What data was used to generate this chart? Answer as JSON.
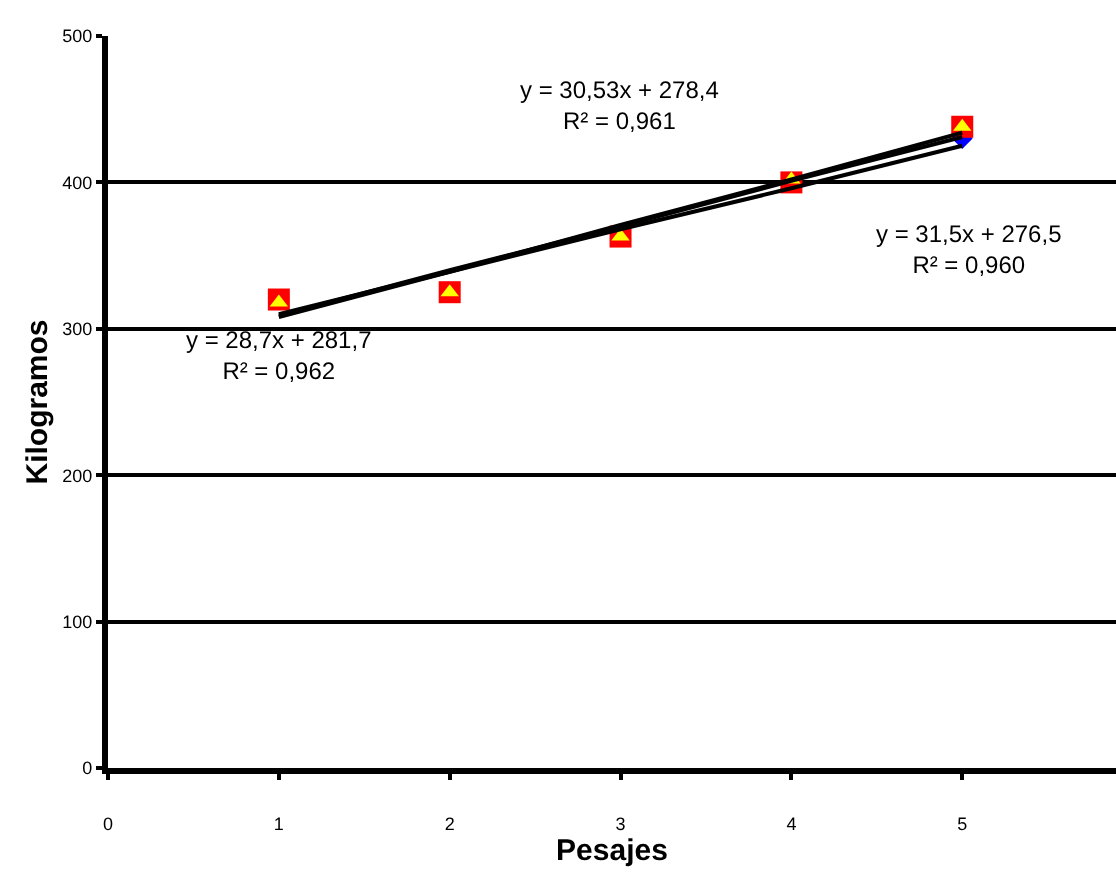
{
  "chart_data": {
    "type": "scatter",
    "xlabel": "Pesajes",
    "ylabel": "Kilogramos",
    "x": [
      1,
      2,
      3,
      4,
      5
    ],
    "series": [
      {
        "color": "#0000ff",
        "marker": "diamond",
        "values": [
          null,
          null,
          null,
          null,
          430
        ]
      },
      {
        "color": "#ff0000",
        "marker": "square",
        "values": [
          320,
          325,
          363,
          400,
          438
        ]
      },
      {
        "color": "#ffff00",
        "marker": "triangle",
        "values": [
          318,
          325,
          363,
          402,
          438
        ]
      },
      {
        "type": "line",
        "color": "#000000",
        "marker": "none",
        "values": [
          310,
          339,
          368,
          396,
          425
        ]
      },
      {
        "type": "line",
        "color": "#000000",
        "marker": "none",
        "values": [
          309,
          340,
          370,
          401,
          431
        ]
      },
      {
        "type": "line",
        "color": "#000000",
        "marker": "none",
        "values": [
          308,
          339,
          371,
          402,
          434
        ]
      }
    ],
    "annotations": [
      "y = 28,7x + 281,7\nR² = 0,962",
      "y = 30,53x + 278,4\nR² = 0,961",
      "y = 31,5x + 276,5\nR² = 0,960"
    ],
    "xlim": [
      0,
      5.9
    ],
    "xticks": [
      0,
      1,
      2,
      3,
      4,
      5
    ],
    "ylim": [
      0,
      500
    ],
    "yticks": [
      0,
      100,
      200,
      300,
      400,
      500
    ],
    "grid": "y"
  }
}
